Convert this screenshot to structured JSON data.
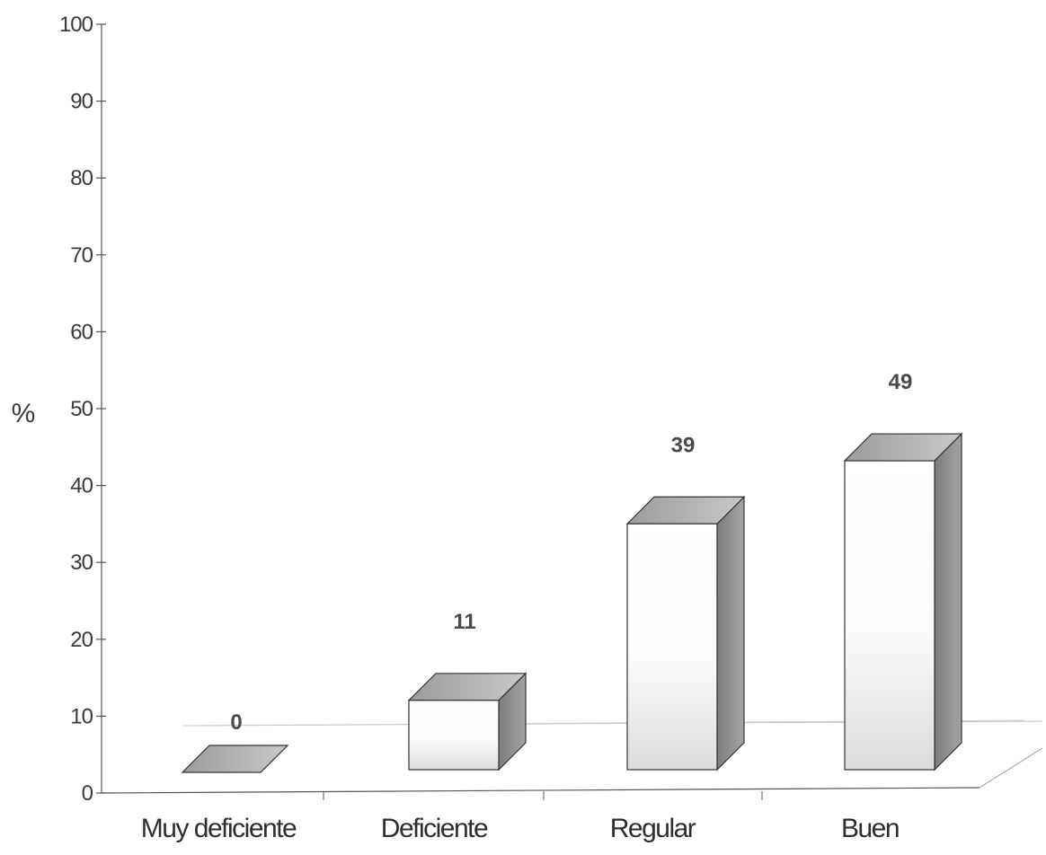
{
  "chart_data": {
    "type": "bar",
    "title": "",
    "xlabel": "",
    "ylabel": "%",
    "categories": [
      "Muy deficiente",
      "Deficiente",
      "Regular",
      "Buen"
    ],
    "series": [
      {
        "values": [
          0,
          11,
          39,
          49
        ]
      }
    ],
    "data_labels": [
      "0",
      "11",
      "39",
      "49"
    ],
    "ylim": [
      0,
      100
    ],
    "yticks": [
      0,
      10,
      20,
      30,
      40,
      50,
      60,
      70,
      80,
      90,
      100
    ],
    "ytick_labels": [
      "0",
      "10",
      "20",
      "30",
      "40",
      "50",
      "60",
      "70",
      "80",
      "90",
      "100"
    ],
    "style": "3d-column",
    "grid": false,
    "legend": "none",
    "colors": {
      "bar_front": "#ffffff",
      "bar_side": "#8a8a8a",
      "bar_top": "#b8b8b8",
      "axis": "#555555",
      "text": "#3a3a3a"
    }
  }
}
